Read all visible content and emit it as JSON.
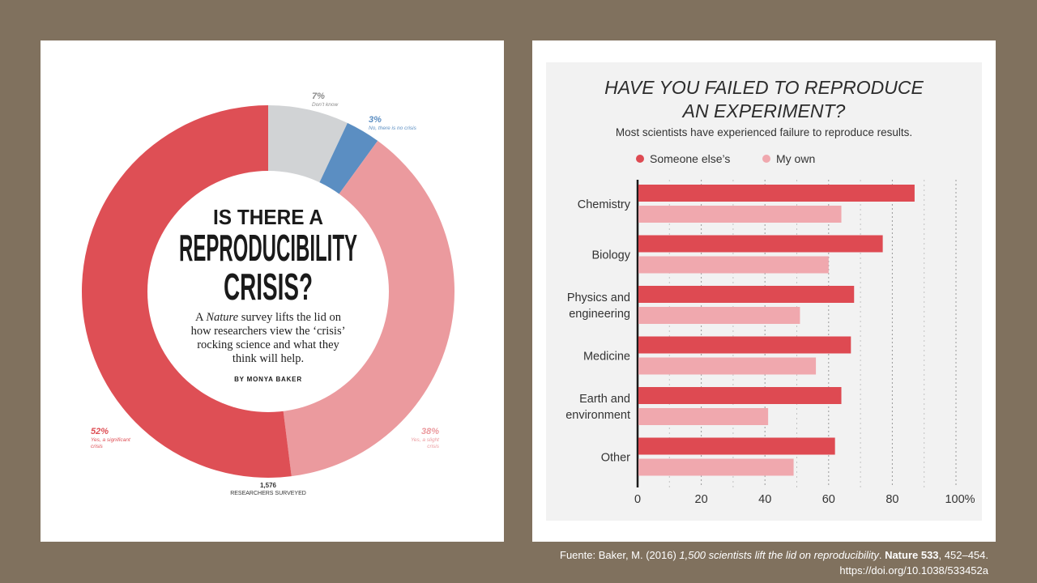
{
  "left_figure": {
    "headline": [
      "IS THERE A",
      "REPRODUCIBILITY",
      "CRISIS?"
    ],
    "deck_prefix": "A ",
    "deck_italic": "Nature",
    "deck_lines": [
      " survey lifts the lid on",
      "how researchers view the ‘crisis’",
      "rocking science and what they",
      "think will help."
    ],
    "byline": "BY MONYA BAKER",
    "total_count": "1,576",
    "total_label": "RESEARCHERS SURVEYED"
  },
  "citation": {
    "prefix": "Fuente: Baker, M. (2016) ",
    "title": "1,500 scientists lift the lid on reproducibility",
    "journal": "Nature 533",
    "pages": ", 452–454.",
    "doi": "https://doi.org/10.1038/533452a"
  },
  "colors": {
    "background": "#80715e",
    "significant": "#de4f55",
    "slight": "#eb9a9e",
    "dont_know": "#d1d3d5",
    "no_crisis": "#5b8ec2",
    "someone_else": "#de4a52",
    "my_own": "#f0a8ae"
  },
  "chart_data": [
    {
      "type": "pie",
      "categories": [
        "Yes, a significant crisis",
        "Yes, a slight crisis",
        "No, there is no crisis",
        "Don’t know"
      ],
      "values": [
        52,
        38,
        3,
        7
      ],
      "value_labels": [
        "52%",
        "38%",
        "3%",
        "7%"
      ],
      "donut": true
    },
    {
      "type": "bar",
      "orientation": "horizontal",
      "title": "HAVE YOU FAILED TO REPRODUCE AN EXPERIMENT?",
      "title_lines": [
        "HAVE YOU FAILED TO REPRODUCE",
        "AN EXPERIMENT?"
      ],
      "subtitle": "Most scientists have experienced failure to reproduce results.",
      "categories": [
        "Chemistry",
        "Biology",
        "Physics and engineering",
        "Medicine",
        "Earth and environment",
        "Other"
      ],
      "category_lines": [
        [
          "Chemistry"
        ],
        [
          "Biology"
        ],
        [
          "Physics and",
          "engineering"
        ],
        [
          "Medicine"
        ],
        [
          "Earth and",
          "environment"
        ],
        [
          "Other"
        ]
      ],
      "series": [
        {
          "name": "Someone else’s",
          "values": [
            87,
            77,
            68,
            67,
            64,
            62
          ]
        },
        {
          "name": "My own",
          "values": [
            64,
            60,
            51,
            56,
            41,
            49
          ]
        }
      ],
      "xlim": [
        0,
        100
      ],
      "xticks": [
        0,
        20,
        40,
        60,
        80,
        100
      ],
      "xtick_labels": [
        "0",
        "20",
        "40",
        "60",
        "80",
        "100%"
      ],
      "grid": true,
      "legend_position": "top"
    }
  ]
}
